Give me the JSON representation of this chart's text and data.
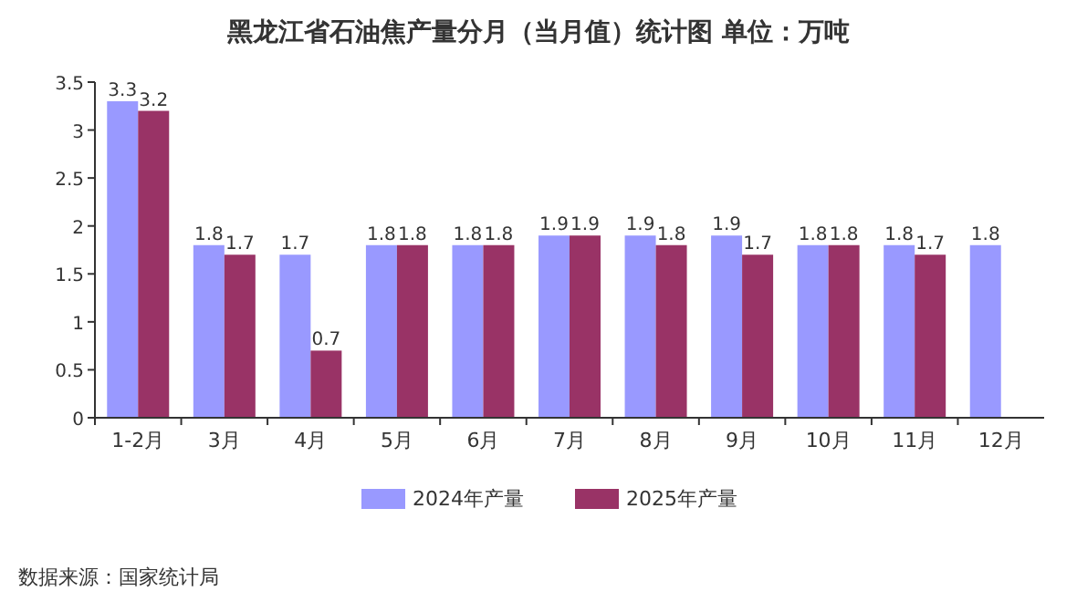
{
  "chart_data": {
    "type": "bar",
    "title": "黑龙江省石油焦产量分月（当月值）统计图 单位：万吨",
    "categories": [
      "1-2月",
      "3月",
      "4月",
      "5月",
      "6月",
      "7月",
      "8月",
      "9月",
      "10月",
      "11月",
      "12月"
    ],
    "series": [
      {
        "name": "2024年产量",
        "color": "#9999ff",
        "values": [
          3.3,
          1.8,
          1.7,
          1.8,
          1.8,
          1.9,
          1.9,
          1.9,
          1.8,
          1.8,
          1.8
        ]
      },
      {
        "name": "2025年产量",
        "color": "#993366",
        "values": [
          3.2,
          1.7,
          0.7,
          1.8,
          1.8,
          1.9,
          1.8,
          1.7,
          1.8,
          1.7,
          null
        ]
      }
    ],
    "ylim": [
      0,
      3.5
    ],
    "yticks": [
      0,
      0.5,
      1,
      1.5,
      2,
      2.5,
      3,
      3.5
    ],
    "data_labels": true,
    "legend": "bottom",
    "annotations": [
      "数据来源：国家统计局"
    ]
  }
}
